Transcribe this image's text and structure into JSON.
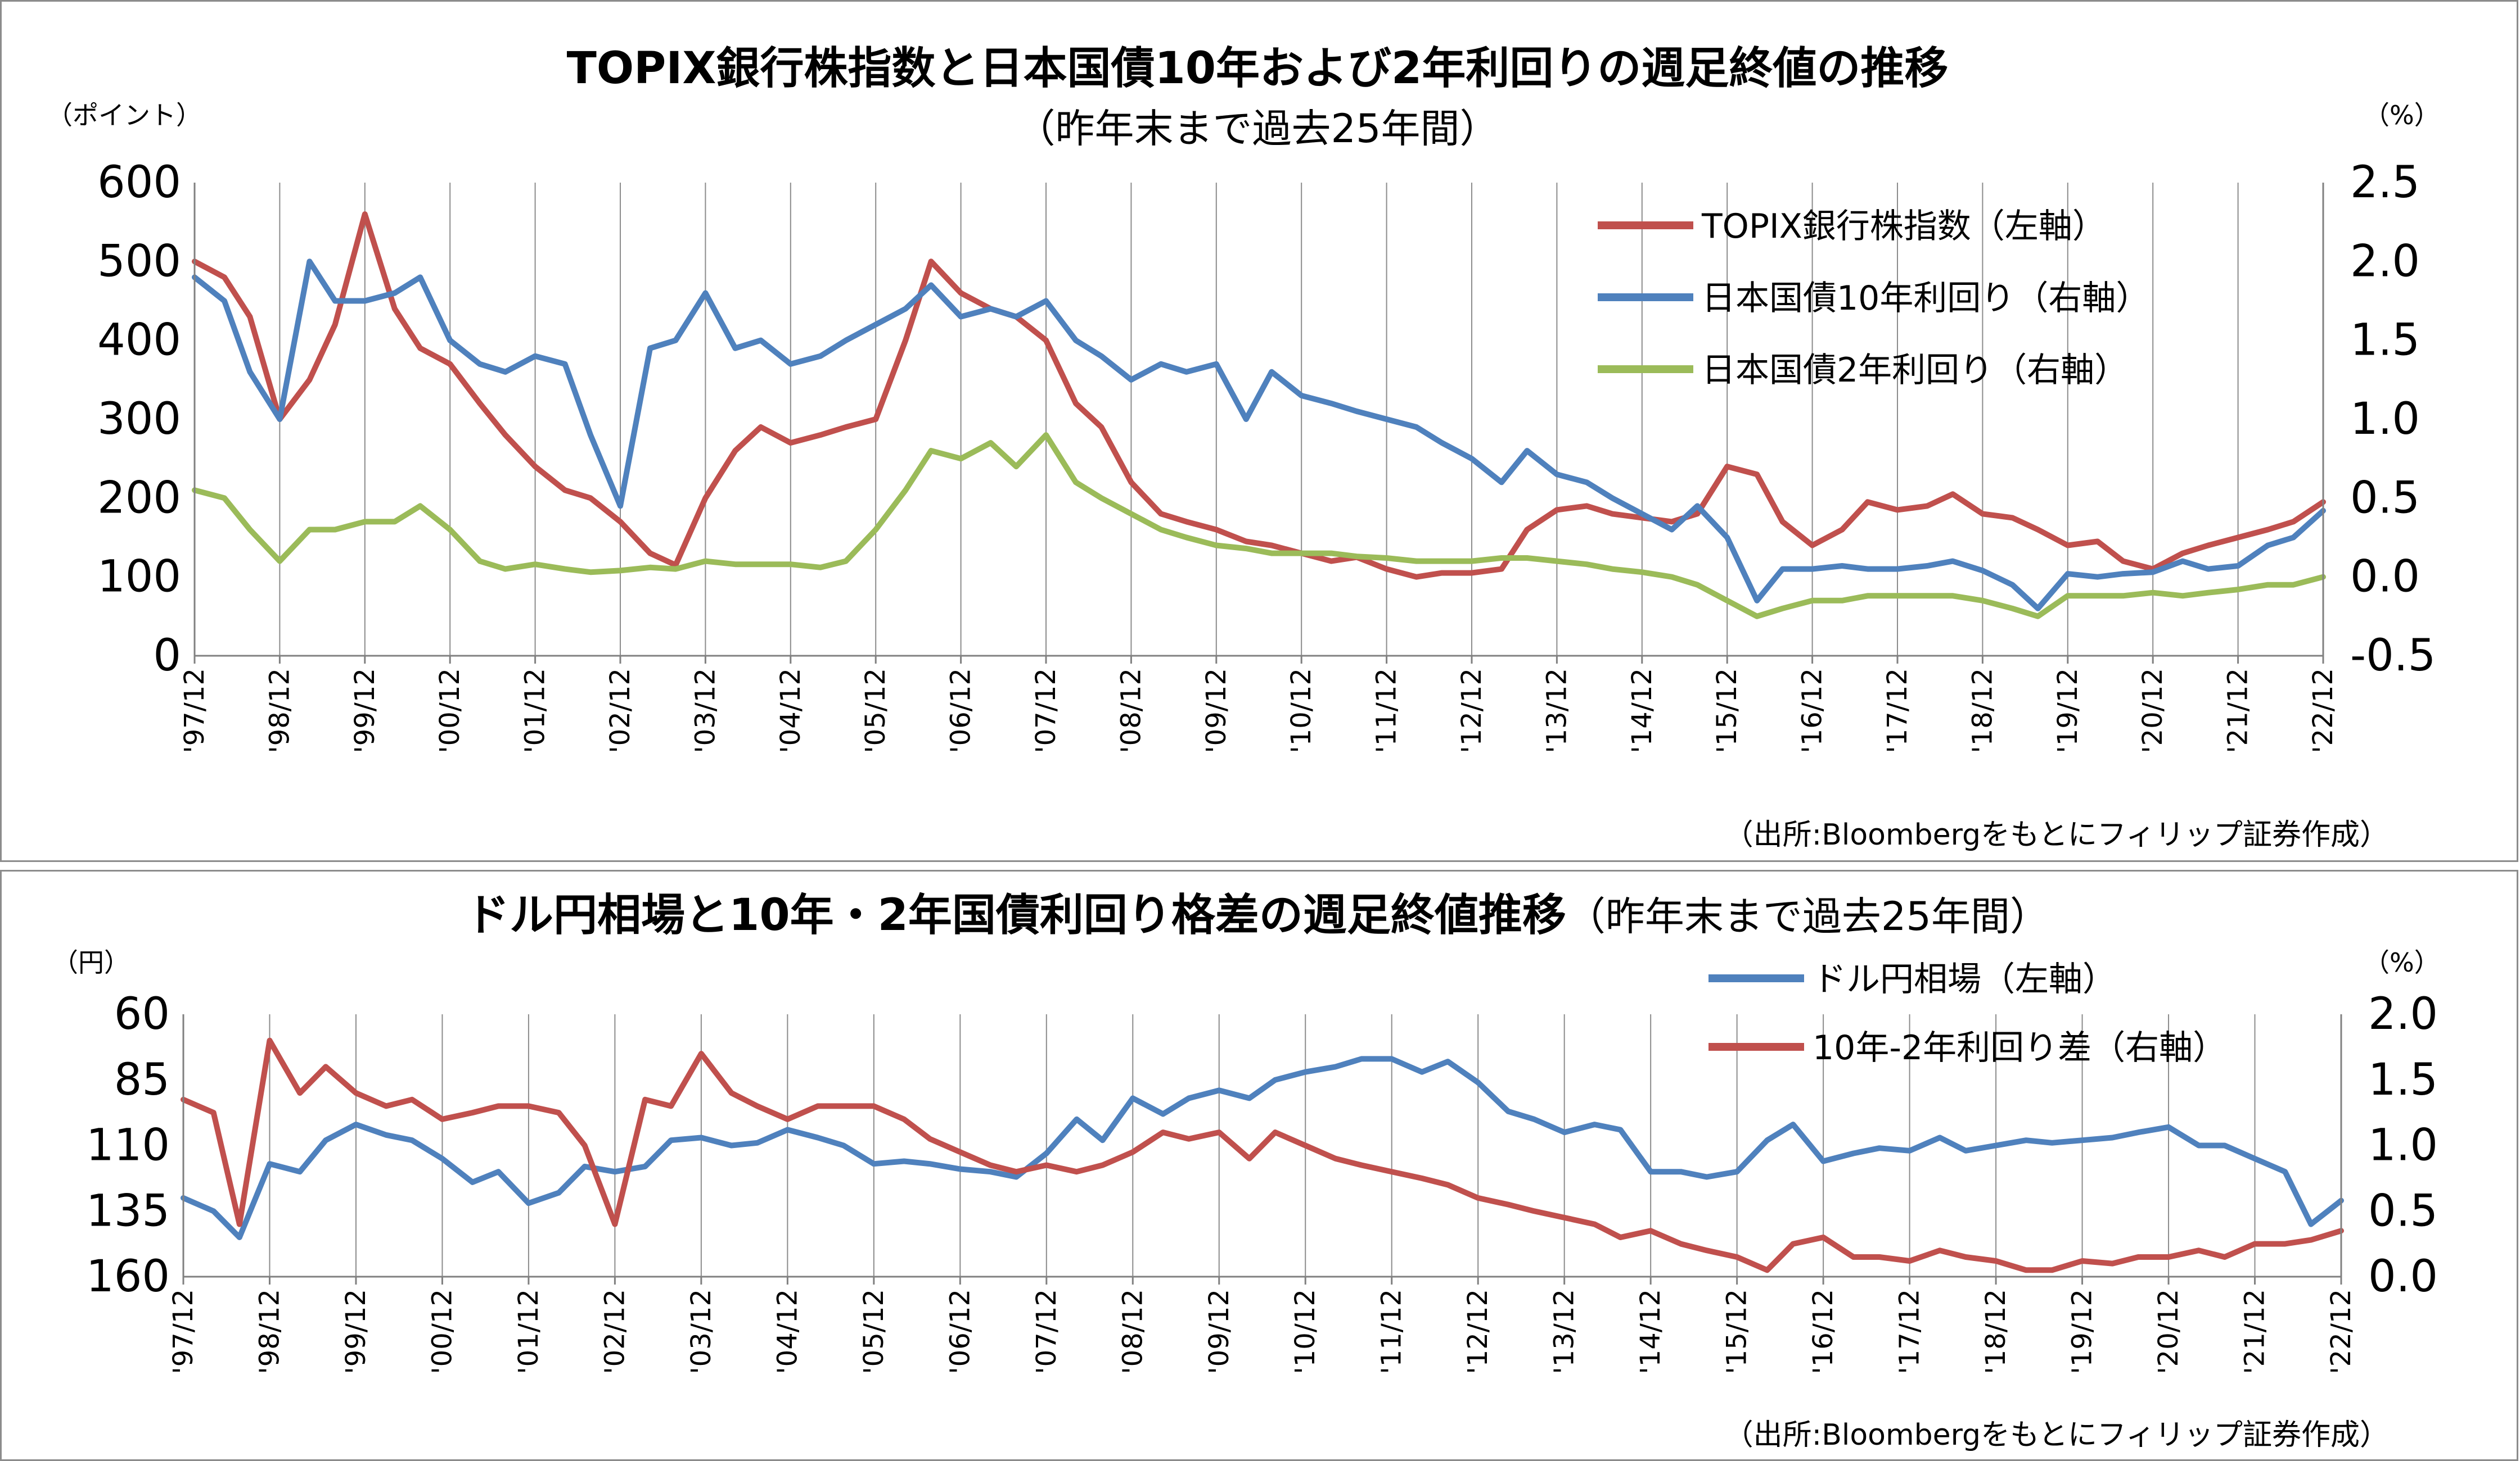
{
  "chart_data": [
    {
      "type": "line",
      "title": "TOPIX銀行株指数と日本国債10年および2年利回りの週足終値の推移",
      "subtitle": "（昨年末まで過去25年間）",
      "left_unit": "（ポイント）",
      "right_unit": "（%）",
      "source": "（出所:Bloombergをもとにフィリップ証券作成）",
      "x_labels": [
        "'97/12",
        "'98/12",
        "'99/12",
        "'00/12",
        "'01/12",
        "'02/12",
        "'03/12",
        "'04/12",
        "'05/12",
        "'06/12",
        "'07/12",
        "'08/12",
        "'09/12",
        "'10/12",
        "'11/12",
        "'12/12",
        "'13/12",
        "'14/12",
        "'15/12",
        "'16/12",
        "'17/12",
        "'18/12",
        "'19/12",
        "'20/12",
        "'21/12",
        "'22/12"
      ],
      "y_left": {
        "min": 0,
        "max": 600,
        "ticks": [
          "0",
          "100",
          "200",
          "300",
          "400",
          "500",
          "600"
        ]
      },
      "y_right": {
        "min": -0.5,
        "max": 2.5,
        "ticks": [
          "-0.5",
          "0.0",
          "0.5",
          "1.0",
          "1.5",
          "2.0",
          "2.5"
        ],
        "negative_color": "#ff0000"
      },
      "grid": "vertical",
      "legend_position": "top-right",
      "series": [
        {
          "name": "TOPIX銀行株指数（左軸）",
          "axis": "left",
          "color": "#c0504d",
          "x": [
            1997.95,
            1998.3,
            1998.6,
            1998.95,
            1999.3,
            1999.6,
            1999.95,
            2000.3,
            2000.6,
            2000.95,
            2001.3,
            2001.6,
            2001.95,
            2002.3,
            2002.6,
            2002.95,
            2003.3,
            2003.6,
            2003.95,
            2004.3,
            2004.6,
            2004.95,
            2005.3,
            2005.6,
            2005.95,
            2006.3,
            2006.6,
            2006.95,
            2007.3,
            2007.6,
            2007.95,
            2008.3,
            2008.6,
            2008.95,
            2009.3,
            2009.6,
            2009.95,
            2010.3,
            2010.6,
            2010.95,
            2011.3,
            2011.6,
            2011.95,
            2012.3,
            2012.6,
            2012.95,
            2013.3,
            2013.6,
            2013.95,
            2014.3,
            2014.6,
            2014.95,
            2015.3,
            2015.6,
            2015.95,
            2016.3,
            2016.6,
            2016.95,
            2017.3,
            2017.6,
            2017.95,
            2018.3,
            2018.6,
            2018.95,
            2019.3,
            2019.6,
            2019.95,
            2020.3,
            2020.6,
            2020.95,
            2021.3,
            2021.6,
            2021.95,
            2022.3,
            2022.6,
            2022.95
          ],
          "values": [
            500,
            480,
            430,
            300,
            350,
            420,
            560,
            440,
            390,
            370,
            320,
            280,
            240,
            210,
            200,
            170,
            130,
            115,
            200,
            260,
            290,
            270,
            280,
            290,
            300,
            400,
            500,
            460,
            440,
            430,
            400,
            320,
            290,
            220,
            180,
            170,
            160,
            145,
            140,
            130,
            120,
            125,
            110,
            100,
            105,
            105,
            110,
            160,
            185,
            190,
            180,
            175,
            170,
            180,
            240,
            230,
            170,
            140,
            160,
            195,
            185,
            190,
            205,
            180,
            175,
            160,
            140,
            145,
            120,
            110,
            130,
            140,
            150,
            160,
            170,
            195
          ]
        },
        {
          "name": "日本国債10年利回り（右軸）",
          "axis": "right",
          "color": "#4f81bd",
          "x": [
            1997.95,
            1998.3,
            1998.6,
            1998.95,
            1999.3,
            1999.6,
            1999.95,
            2000.3,
            2000.6,
            2000.95,
            2001.3,
            2001.6,
            2001.95,
            2002.3,
            2002.6,
            2002.95,
            2003.3,
            2003.6,
            2003.95,
            2004.3,
            2004.6,
            2004.95,
            2005.3,
            2005.6,
            2005.95,
            2006.3,
            2006.6,
            2006.95,
            2007.3,
            2007.6,
            2007.95,
            2008.3,
            2008.6,
            2008.95,
            2009.3,
            2009.6,
            2009.95,
            2010.3,
            2010.6,
            2010.95,
            2011.3,
            2011.6,
            2011.95,
            2012.3,
            2012.6,
            2012.95,
            2013.3,
            2013.6,
            2013.95,
            2014.3,
            2014.6,
            2014.95,
            2015.3,
            2015.6,
            2015.95,
            2016.3,
            2016.6,
            2016.95,
            2017.3,
            2017.6,
            2017.95,
            2018.3,
            2018.6,
            2018.95,
            2019.3,
            2019.6,
            2019.95,
            2020.3,
            2020.6,
            2020.95,
            2021.3,
            2021.6,
            2021.95,
            2022.3,
            2022.6,
            2022.95
          ],
          "values": [
            1.9,
            1.75,
            1.3,
            1.0,
            2.0,
            1.75,
            1.75,
            1.8,
            1.9,
            1.5,
            1.35,
            1.3,
            1.4,
            1.35,
            0.9,
            0.45,
            1.45,
            1.5,
            1.8,
            1.45,
            1.5,
            1.35,
            1.4,
            1.5,
            1.6,
            1.7,
            1.85,
            1.65,
            1.7,
            1.65,
            1.75,
            1.5,
            1.4,
            1.25,
            1.35,
            1.3,
            1.35,
            1.0,
            1.3,
            1.15,
            1.1,
            1.05,
            1.0,
            0.95,
            0.85,
            0.75,
            0.6,
            0.8,
            0.65,
            0.6,
            0.5,
            0.4,
            0.3,
            0.45,
            0.25,
            -0.15,
            0.05,
            0.05,
            0.07,
            0.05,
            0.05,
            0.07,
            0.1,
            0.04,
            -0.05,
            -0.2,
            0.02,
            0.0,
            0.02,
            0.03,
            0.1,
            0.05,
            0.07,
            0.2,
            0.25,
            0.42
          ]
        },
        {
          "name": "日本国債2年利回り（右軸）",
          "axis": "right",
          "color": "#9bbb59",
          "x": [
            1997.95,
            1998.3,
            1998.6,
            1998.95,
            1999.3,
            1999.6,
            1999.95,
            2000.3,
            2000.6,
            2000.95,
            2001.3,
            2001.6,
            2001.95,
            2002.3,
            2002.6,
            2002.95,
            2003.3,
            2003.6,
            2003.95,
            2004.3,
            2004.6,
            2004.95,
            2005.3,
            2005.6,
            2005.95,
            2006.3,
            2006.6,
            2006.95,
            2007.3,
            2007.6,
            2007.95,
            2008.3,
            2008.6,
            2008.95,
            2009.3,
            2009.6,
            2009.95,
            2010.3,
            2010.6,
            2010.95,
            2011.3,
            2011.6,
            2011.95,
            2012.3,
            2012.6,
            2012.95,
            2013.3,
            2013.6,
            2013.95,
            2014.3,
            2014.6,
            2014.95,
            2015.3,
            2015.6,
            2015.95,
            2016.3,
            2016.6,
            2016.95,
            2017.3,
            2017.6,
            2017.95,
            2018.3,
            2018.6,
            2018.95,
            2019.3,
            2019.6,
            2019.95,
            2020.3,
            2020.6,
            2020.95,
            2021.3,
            2021.6,
            2021.95,
            2022.3,
            2022.6,
            2022.95
          ],
          "values": [
            0.55,
            0.5,
            0.3,
            0.1,
            0.3,
            0.3,
            0.35,
            0.35,
            0.45,
            0.3,
            0.1,
            0.05,
            0.08,
            0.05,
            0.03,
            0.04,
            0.06,
            0.05,
            0.1,
            0.08,
            0.08,
            0.08,
            0.06,
            0.1,
            0.3,
            0.55,
            0.8,
            0.75,
            0.85,
            0.7,
            0.9,
            0.6,
            0.5,
            0.4,
            0.3,
            0.25,
            0.2,
            0.18,
            0.15,
            0.15,
            0.15,
            0.13,
            0.12,
            0.1,
            0.1,
            0.1,
            0.12,
            0.12,
            0.1,
            0.08,
            0.05,
            0.03,
            0.0,
            -0.05,
            -0.15,
            -0.25,
            -0.2,
            -0.15,
            -0.15,
            -0.12,
            -0.12,
            -0.12,
            -0.12,
            -0.15,
            -0.2,
            -0.25,
            -0.12,
            -0.12,
            -0.12,
            -0.1,
            -0.12,
            -0.1,
            -0.08,
            -0.05,
            -0.05,
            0.0
          ]
        }
      ]
    },
    {
      "type": "line",
      "title": "ドル円相場と10年・2年国債利回り格差の週足終値推移",
      "subtitle": "（昨年末まで過去25年間）",
      "left_unit": "（円）",
      "right_unit": "（%）",
      "source": "（出所:Bloombergをもとにフィリップ証券作成）",
      "x_labels": [
        "'97/12",
        "'98/12",
        "'99/12",
        "'00/12",
        "'01/12",
        "'02/12",
        "'03/12",
        "'04/12",
        "'05/12",
        "'06/12",
        "'07/12",
        "'08/12",
        "'09/12",
        "'10/12",
        "'11/12",
        "'12/12",
        "'13/12",
        "'14/12",
        "'15/12",
        "'16/12",
        "'17/12",
        "'18/12",
        "'19/12",
        "'20/12",
        "'21/12",
        "'22/12"
      ],
      "y_left": {
        "min": 60,
        "max": 160,
        "inverted": true,
        "ticks": [
          "60",
          "85",
          "110",
          "135",
          "160"
        ]
      },
      "y_right": {
        "min": 0.0,
        "max": 2.0,
        "ticks": [
          "0.0",
          "0.5",
          "1.0",
          "1.5",
          "2.0"
        ]
      },
      "grid": "vertical",
      "legend_position": "top-right",
      "series": [
        {
          "name": "ドル円相場（左軸）",
          "axis": "left",
          "color": "#4f81bd",
          "x": [
            1997.95,
            1998.3,
            1998.6,
            1998.95,
            1999.3,
            1999.6,
            1999.95,
            2000.3,
            2000.6,
            2000.95,
            2001.3,
            2001.6,
            2001.95,
            2002.3,
            2002.6,
            2002.95,
            2003.3,
            2003.6,
            2003.95,
            2004.3,
            2004.6,
            2004.95,
            2005.3,
            2005.6,
            2005.95,
            2006.3,
            2006.6,
            2006.95,
            2007.3,
            2007.6,
            2007.95,
            2008.3,
            2008.6,
            2008.95,
            2009.3,
            2009.6,
            2009.95,
            2010.3,
            2010.6,
            2010.95,
            2011.3,
            2011.6,
            2011.95,
            2012.3,
            2012.6,
            2012.95,
            2013.3,
            2013.6,
            2013.95,
            2014.3,
            2014.6,
            2014.95,
            2015.3,
            2015.6,
            2015.95,
            2016.3,
            2016.6,
            2016.95,
            2017.3,
            2017.6,
            2017.95,
            2018.3,
            2018.6,
            2018.95,
            2019.3,
            2019.6,
            2019.95,
            2020.3,
            2020.6,
            2020.95,
            2021.3,
            2021.6,
            2021.95,
            2022.3,
            2022.6,
            2022.95
          ],
          "values": [
            130,
            135,
            145,
            117,
            120,
            108,
            102,
            106,
            108,
            115,
            124,
            120,
            132,
            128,
            118,
            120,
            118,
            108,
            107,
            110,
            109,
            104,
            107,
            110,
            117,
            116,
            117,
            119,
            120,
            122,
            113,
            100,
            108,
            92,
            98,
            92,
            89,
            92,
            85,
            82,
            80,
            77,
            77,
            82,
            78,
            86,
            97,
            100,
            105,
            102,
            104,
            120,
            120,
            122,
            120,
            108,
            102,
            116,
            113,
            111,
            112,
            107,
            112,
            110,
            108,
            109,
            108,
            107,
            105,
            103,
            110,
            110,
            115,
            120,
            140,
            131
          ]
        },
        {
          "name": "10年-2年利回り差（右軸）",
          "axis": "right",
          "color": "#c0504d",
          "x": [
            1997.95,
            1998.3,
            1998.6,
            1998.95,
            1999.3,
            1999.6,
            1999.95,
            2000.3,
            2000.6,
            2000.95,
            2001.3,
            2001.6,
            2001.95,
            2002.3,
            2002.6,
            2002.95,
            2003.3,
            2003.6,
            2003.95,
            2004.3,
            2004.6,
            2004.95,
            2005.3,
            2005.6,
            2005.95,
            2006.3,
            2006.6,
            2006.95,
            2007.3,
            2007.6,
            2007.95,
            2008.3,
            2008.6,
            2008.95,
            2009.3,
            2009.6,
            2009.95,
            2010.3,
            2010.6,
            2010.95,
            2011.3,
            2011.6,
            2011.95,
            2012.3,
            2012.6,
            2012.95,
            2013.3,
            2013.6,
            2013.95,
            2014.3,
            2014.6,
            2014.95,
            2015.3,
            2015.6,
            2015.95,
            2016.3,
            2016.6,
            2016.95,
            2017.3,
            2017.6,
            2017.95,
            2018.3,
            2018.6,
            2018.95,
            2019.3,
            2019.6,
            2019.95,
            2020.3,
            2020.6,
            2020.95,
            2021.3,
            2021.6,
            2021.95,
            2022.3,
            2022.6,
            2022.95
          ],
          "values": [
            1.35,
            1.25,
            0.4,
            1.8,
            1.4,
            1.6,
            1.4,
            1.3,
            1.35,
            1.2,
            1.25,
            1.3,
            1.3,
            1.25,
            1.0,
            0.4,
            1.35,
            1.3,
            1.7,
            1.4,
            1.3,
            1.2,
            1.3,
            1.3,
            1.3,
            1.2,
            1.05,
            0.95,
            0.85,
            0.8,
            0.85,
            0.8,
            0.85,
            0.95,
            1.1,
            1.05,
            1.1,
            0.9,
            1.1,
            1.0,
            0.9,
            0.85,
            0.8,
            0.75,
            0.7,
            0.6,
            0.55,
            0.5,
            0.45,
            0.4,
            0.3,
            0.35,
            0.25,
            0.2,
            0.15,
            0.05,
            0.25,
            0.3,
            0.15,
            0.15,
            0.12,
            0.2,
            0.15,
            0.12,
            0.05,
            0.05,
            0.12,
            0.1,
            0.15,
            0.15,
            0.2,
            0.15,
            0.25,
            0.25,
            0.28,
            0.35
          ]
        }
      ]
    }
  ]
}
